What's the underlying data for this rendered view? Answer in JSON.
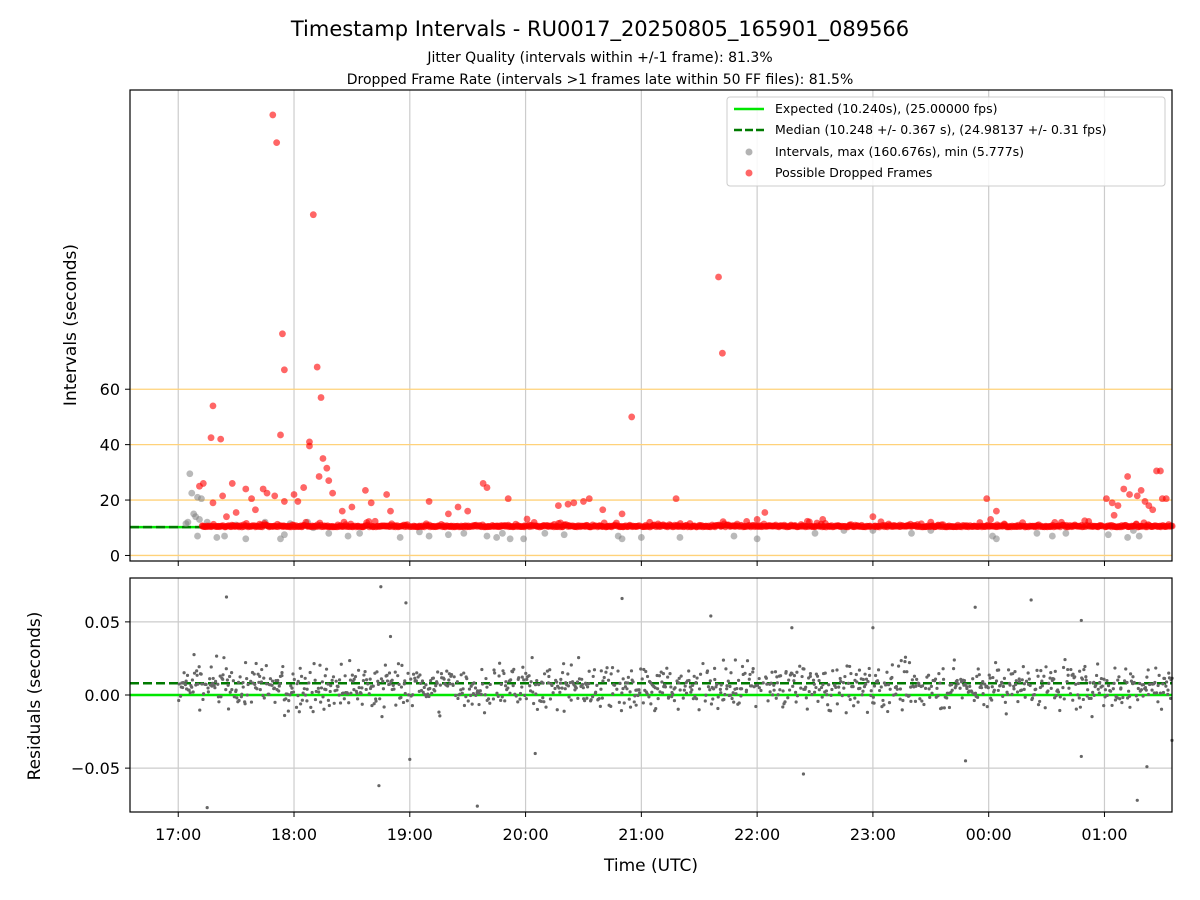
{
  "chart_data": {
    "title": "Timestamp Intervals - RU0017_20250805_165901_089566",
    "subtitle_lines": [
      "Jitter Quality (intervals within +/-1 frame): 81.3%",
      "Dropped Frame Rate (intervals >1 frames late within 50 FF files): 81.5%"
    ],
    "x_axis": {
      "label": "Time (UTC)",
      "type": "time",
      "range": [
        "16:35",
        "01:35"
      ],
      "tick_labels": [
        "17:00",
        "18:00",
        "19:00",
        "20:00",
        "21:00",
        "22:00",
        "23:00",
        "00:00",
        "01:00"
      ],
      "grid": true
    },
    "panels": [
      {
        "id": "intervals",
        "type": "scatter",
        "ylabel": "Intervals (seconds)",
        "ylim": [
          -2,
          168
        ],
        "y_ticks": [
          0,
          20,
          40,
          60
        ],
        "threshold_lines": [
          0,
          20,
          40,
          60
        ],
        "legend_position": "top-right",
        "reference_lines": [
          {
            "name": "Expected (10.240s), (25.00000 fps)",
            "value": 10.24,
            "style": "solid",
            "color": "#00e600"
          },
          {
            "name": "Median (10.248 +/- 0.367 s), (24.98137 +/- 0.31 fps)",
            "value": 10.248,
            "style": "dashed",
            "color": "#007a00"
          }
        ],
        "series": [
          {
            "name": "Intervals, max (160.676s), min (5.777s)",
            "color": "#808080",
            "points": [
              [
                "17:06",
                29.5
              ],
              [
                "17:07",
                22.5
              ],
              [
                "17:10",
                21.0
              ],
              [
                "17:12",
                20.5
              ],
              [
                "17:08",
                15.0
              ],
              [
                "17:09",
                14.0
              ],
              [
                "17:11",
                13.0
              ],
              [
                "17:05",
                12.0
              ],
              [
                "17:04",
                11.5
              ],
              [
                "17:10",
                7.0
              ],
              [
                "17:20",
                6.5
              ],
              [
                "17:24",
                7.0
              ],
              [
                "17:35",
                6.0
              ],
              [
                "17:55",
                7.5
              ],
              [
                "17:58",
                11.5
              ],
              [
                "17:15",
                12.0
              ],
              [
                "17:30",
                11.0
              ],
              [
                "17:45",
                12.0
              ],
              [
                "18:07",
                12.0
              ],
              [
                "18:10",
                10.0
              ],
              [
                "17:53",
                6.0
              ],
              [
                "18:18",
                8.0
              ],
              [
                "18:28",
                7.0
              ],
              [
                "18:34",
                8.0
              ],
              [
                "18:55",
                6.5
              ],
              [
                "19:05",
                8.5
              ],
              [
                "19:10",
                7.0
              ],
              [
                "19:20",
                7.5
              ],
              [
                "19:28",
                8.0
              ],
              [
                "19:40",
                7.0
              ],
              [
                "19:45",
                6.5
              ],
              [
                "19:48",
                8.0
              ],
              [
                "19:52",
                6.0
              ],
              [
                "19:59",
                6.0
              ],
              [
                "20:10",
                8.0
              ],
              [
                "20:20",
                7.5
              ],
              [
                "20:48",
                7.0
              ],
              [
                "20:50",
                6.0
              ],
              [
                "21:00",
                6.5
              ],
              [
                "21:20",
                6.5
              ],
              [
                "21:48",
                7.0
              ],
              [
                "22:00",
                6.0
              ],
              [
                "22:30",
                8.0
              ],
              [
                "22:45",
                9.0
              ],
              [
                "23:00",
                9.0
              ],
              [
                "23:20",
                8.0
              ],
              [
                "23:30",
                9.0
              ],
              [
                "00:02",
                7.0
              ],
              [
                "00:04",
                6.0
              ],
              [
                "00:25",
                8.0
              ],
              [
                "00:33",
                7.0
              ],
              [
                "00:40",
                8.0
              ],
              [
                "01:02",
                7.5
              ],
              [
                "01:12",
                6.5
              ],
              [
                "01:18",
                7.0
              ],
              [
                "01:15",
                9.0
              ]
            ]
          },
          {
            "name": "Possible Dropped Frames",
            "color": "#ff0000",
            "points": [
              [
                "17:49",
                159.0
              ],
              [
                "17:51",
                149.0
              ],
              [
                "18:10",
                123.0
              ],
              [
                "17:54",
                80.0
              ],
              [
                "17:55",
                67.0
              ],
              [
                "18:12",
                68.0
              ],
              [
                "18:14",
                57.0
              ],
              [
                "17:18",
                54.0
              ],
              [
                "17:17",
                42.5
              ],
              [
                "17:22",
                42.0
              ],
              [
                "17:53",
                43.5
              ],
              [
                "18:08",
                41.0
              ],
              [
                "18:08",
                39.5
              ],
              [
                "18:15",
                35.0
              ],
              [
                "18:17",
                31.5
              ],
              [
                "18:13",
                28.5
              ],
              [
                "18:18",
                27.0
              ],
              [
                "18:05",
                24.5
              ],
              [
                "17:11",
                25.0
              ],
              [
                "17:13",
                26.0
              ],
              [
                "17:28",
                26.0
              ],
              [
                "17:35",
                24.0
              ],
              [
                "17:44",
                24.0
              ],
              [
                "17:46",
                22.5
              ],
              [
                "17:50",
                21.5
              ],
              [
                "18:00",
                22.0
              ],
              [
                "18:20",
                22.5
              ],
              [
                "18:37",
                23.5
              ],
              [
                "18:48",
                22.0
              ],
              [
                "17:23",
                21.5
              ],
              [
                "17:18",
                19.0
              ],
              [
                "17:38",
                20.5
              ],
              [
                "17:55",
                19.5
              ],
              [
                "18:02",
                19.5
              ],
              [
                "18:40",
                19.0
              ],
              [
                "19:10",
                19.5
              ],
              [
                "19:38",
                26.0
              ],
              [
                "19:40",
                24.5
              ],
              [
                "19:51",
                20.5
              ],
              [
                "20:17",
                18.0
              ],
              [
                "20:22",
                18.5
              ],
              [
                "20:25",
                19.0
              ],
              [
                "20:30",
                19.5
              ],
              [
                "20:33",
                20.5
              ],
              [
                "20:55",
                50.0
              ],
              [
                "21:18",
                20.5
              ],
              [
                "21:40",
                100.5
              ],
              [
                "21:42",
                73.0
              ],
              [
                "23:00",
                14.0
              ],
              [
                "23:59",
                20.5
              ],
              [
                "01:01",
                20.5
              ],
              [
                "01:04",
                19.0
              ],
              [
                "01:07",
                18.0
              ],
              [
                "01:10",
                24.0
              ],
              [
                "01:12",
                28.5
              ],
              [
                "01:13",
                22.0
              ],
              [
                "01:17",
                21.5
              ],
              [
                "01:19",
                23.5
              ],
              [
                "01:21",
                19.5
              ],
              [
                "01:23",
                18.0
              ],
              [
                "01:27",
                30.5
              ],
              [
                "01:29",
                30.5
              ],
              [
                "01:30",
                20.5
              ],
              [
                "01:32",
                20.5
              ],
              [
                "01:25",
                16.5
              ],
              [
                "01:05",
                14.5
              ],
              [
                "00:04",
                16.0
              ],
              [
                "00:01",
                13.0
              ],
              [
                "23:30",
                12.0
              ],
              [
                "22:34",
                13.0
              ],
              [
                "22:04",
                15.5
              ],
              [
                "22:00",
                13.0
              ],
              [
                "20:40",
                16.5
              ],
              [
                "20:50",
                15.0
              ],
              [
                "19:25",
                17.5
              ],
              [
                "19:30",
                16.0
              ],
              [
                "19:20",
                15.0
              ],
              [
                "18:50",
                16.0
              ],
              [
                "18:30",
                17.5
              ],
              [
                "18:25",
                16.0
              ],
              [
                "17:40",
                16.5
              ],
              [
                "17:30",
                15.5
              ],
              [
                "17:25",
                14.0
              ]
            ],
            "dense_band": [
              {
                "start": "17:12",
                "end": "18:59",
                "min": 9.0,
                "max": 15.0
              },
              {
                "start": "19:00",
                "end": "20:59",
                "min": 9.0,
                "max": 13.5
              },
              {
                "start": "21:00",
                "end": "22:59",
                "min": 9.5,
                "max": 13.0
              },
              {
                "start": "23:00",
                "end": "00:59",
                "min": 9.5,
                "max": 12.5
              },
              {
                "start": "01:00",
                "end": "01:35",
                "min": 8.5,
                "max": 17.0
              }
            ]
          }
        ]
      },
      {
        "id": "residuals",
        "type": "scatter",
        "ylabel": "Residuals (seconds)",
        "ylim": [
          -0.08,
          0.08
        ],
        "y_ticks": [
          0.05,
          0.0,
          -0.05
        ],
        "y_tick_labels": [
          "0.05",
          "0.00",
          "−0.05"
        ],
        "reference_lines": [
          {
            "value": 0.0,
            "style": "solid",
            "color": "#00e600"
          },
          {
            "value": 0.008,
            "style": "dashed",
            "color": "#007a00"
          }
        ],
        "series": [
          {
            "color": "#666666",
            "outliers": [
              [
                "17:25",
                0.067
              ],
              [
                "18:45",
                0.074
              ],
              [
                "18:58",
                0.063
              ],
              [
                "20:50",
                0.066
              ],
              [
                "21:36",
                0.054
              ],
              [
                "22:18",
                0.046
              ],
              [
                "23:00",
                0.046
              ],
              [
                "23:53",
                0.06
              ],
              [
                "00:22",
                0.065
              ],
              [
                "00:48",
                0.051
              ],
              [
                "17:15",
                -0.077
              ],
              [
                "18:44",
                -0.062
              ],
              [
                "19:35",
                -0.076
              ],
              [
                "22:24",
                -0.054
              ],
              [
                "23:48",
                -0.045
              ],
              [
                "01:17",
                -0.072
              ],
              [
                "01:22",
                -0.049
              ],
              [
                "01:35",
                -0.031
              ],
              [
                "19:00",
                -0.044
              ],
              [
                "00:48",
                -0.042
              ],
              [
                "20:05",
                -0.04
              ],
              [
                "18:50",
                0.04
              ]
            ],
            "spread": {
              "center": 0.006,
              "sd": 0.011
            }
          }
        ]
      }
    ]
  }
}
